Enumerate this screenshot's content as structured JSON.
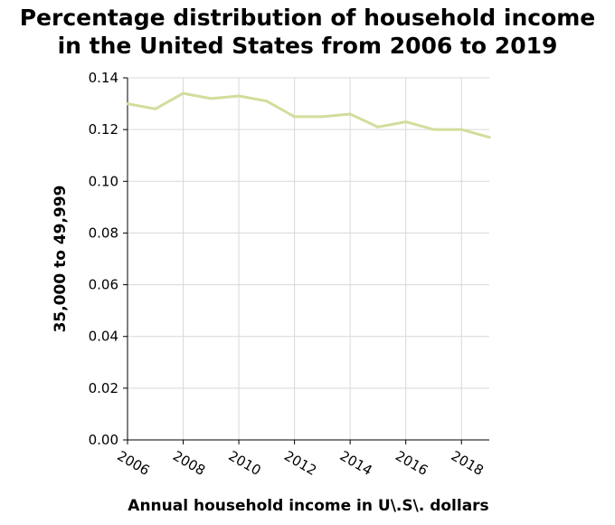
{
  "chart_data": {
    "type": "line",
    "title_line1": "Percentage distribution of household income",
    "title_line2": "in the United States from 2006 to 2019",
    "xlabel": "Annual household income in U\\.S\\. dollars",
    "ylabel": "35,000 to 49,999",
    "xlim": [
      2006,
      2019
    ],
    "ylim": [
      0,
      0.14
    ],
    "x_ticks": [
      2006,
      2008,
      2010,
      2012,
      2014,
      2016,
      2018
    ],
    "y_ticks": [
      "0.00",
      "0.02",
      "0.04",
      "0.06",
      "0.08",
      "0.10",
      "0.12",
      "0.14"
    ],
    "grid": true,
    "line_color": "#d4dc9c",
    "grid_color": "#d9d9d9",
    "series": [
      {
        "x": [
          2006,
          2007,
          2008,
          2009,
          2010,
          2011,
          2012,
          2013,
          2014,
          2015,
          2016,
          2017,
          2018,
          2019
        ],
        "values": [
          0.13,
          0.128,
          0.134,
          0.132,
          0.133,
          0.131,
          0.125,
          0.125,
          0.126,
          0.121,
          0.123,
          0.12,
          0.12,
          0.117
        ]
      }
    ]
  }
}
